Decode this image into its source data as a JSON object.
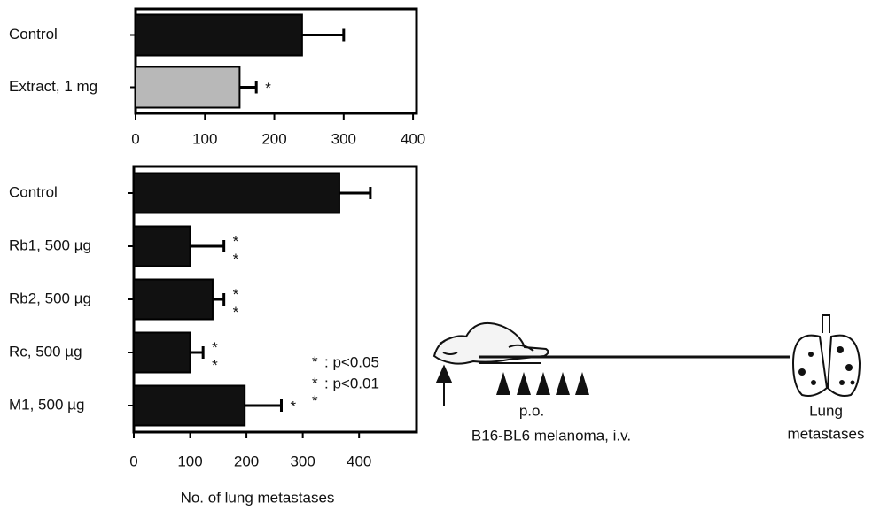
{
  "chart_data": [
    {
      "type": "hbar",
      "categories": [
        "Control",
        "Extract, 1 mg"
      ],
      "series": [
        {
          "values": [
            240,
            150
          ],
          "errors": [
            60,
            24
          ],
          "colors": [
            "#111111",
            "#b8b8b8"
          ]
        }
      ],
      "annotations": [
        null,
        "*"
      ],
      "xlim": [
        0,
        405
      ],
      "xticks": [
        0,
        100,
        200,
        300,
        400
      ]
    },
    {
      "type": "hbar",
      "categories": [
        "Control",
        "Rb1, 500 µg",
        "Rb2, 500 µg",
        "Rc, 500 µg",
        "M1, 500 µg"
      ],
      "series": [
        {
          "values": [
            365,
            100,
            140,
            100,
            197
          ],
          "errors": [
            55,
            60,
            20,
            23,
            65
          ],
          "colors": [
            "#111111",
            "#111111",
            "#111111",
            "#111111",
            "#111111"
          ]
        }
      ],
      "annotations": [
        null,
        "**",
        "**",
        "**",
        "*"
      ],
      "xlim": [
        0,
        502
      ],
      "xticks": [
        0,
        100,
        200,
        300,
        400
      ],
      "xlabel": "No. of lung metastases",
      "significance_key": [
        {
          "symbol": "*",
          "label": ": p<0.05"
        },
        {
          "symbol": "**",
          "label": ": p<0.01"
        }
      ]
    }
  ],
  "diagram": {
    "route": "p.o.",
    "injection": "B16-BL6 melanoma, i.v.",
    "outcome": [
      "Lung",
      "metastases"
    ]
  }
}
